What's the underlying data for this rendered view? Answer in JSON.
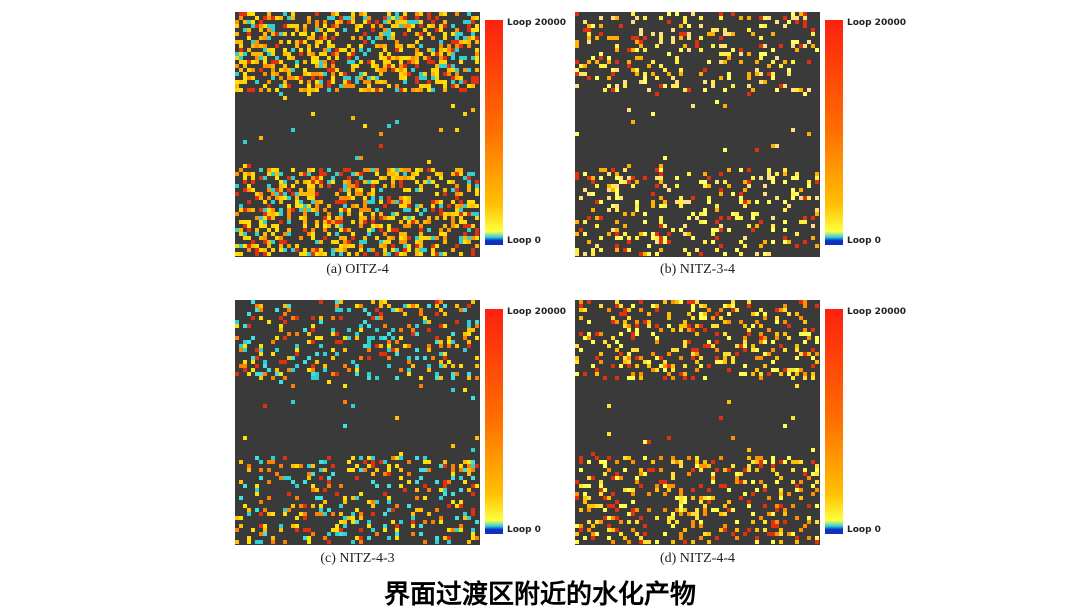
{
  "main_title": "界面过渡区附近的水化产物",
  "chart_data": {
    "type": "heatmap",
    "colorbar": {
      "max_label": "Loop 20000",
      "min_label": "Loop 0",
      "range": [
        0,
        20000
      ],
      "colors": [
        "#1030c0",
        "#30d0e0",
        "#ffff40",
        "#ffc000",
        "#ff7000",
        "#ff2010"
      ]
    },
    "panels": [
      {
        "caption": "(a) OITZ-4",
        "density": 0.78,
        "palette": [
          "#ffd400",
          "#ffe000",
          "#ffb800",
          "#ff9000",
          "#e03010",
          "#30d0d0"
        ]
      },
      {
        "caption": "(b) NITZ-3-4",
        "density": 0.38,
        "palette": [
          "#ffff60",
          "#fff040",
          "#ffe080",
          "#ffb000",
          "#e03010"
        ]
      },
      {
        "caption": "(c) NITZ-4-3",
        "density": 0.42,
        "palette": [
          "#30d0d0",
          "#40e0e0",
          "#ffe000",
          "#ffc000",
          "#ff8000",
          "#e03010"
        ]
      },
      {
        "caption": "(d) NITZ-4-4",
        "density": 0.45,
        "palette": [
          "#ffff50",
          "#ffe030",
          "#ffc000",
          "#ff9000",
          "#e03010"
        ]
      }
    ]
  }
}
